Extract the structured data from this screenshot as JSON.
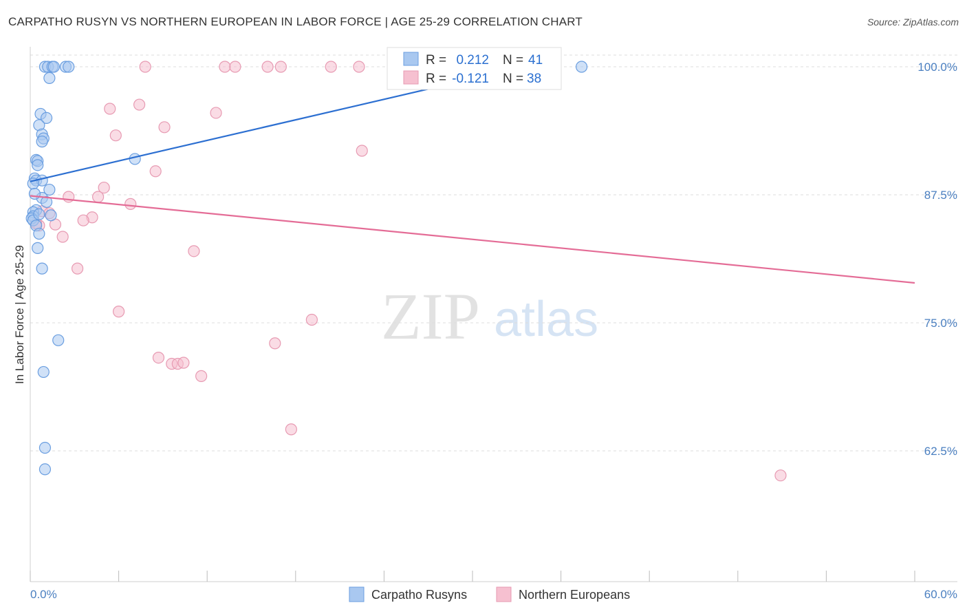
{
  "title": "CARPATHO RUSYN VS NORTHERN EUROPEAN IN LABOR FORCE | AGE 25-29 CORRELATION CHART",
  "source": "Source: ZipAtlas.com",
  "watermark": {
    "zip": "ZIP",
    "atlas": "atlas"
  },
  "colors": {
    "blue_fill": "#a9c8f0",
    "blue_stroke": "#6a9ee0",
    "blue_line": "#2c6fd1",
    "pink_fill": "#f6c0d0",
    "pink_stroke": "#e79ab2",
    "pink_line": "#e46c96",
    "grid": "#dddddd",
    "axis_text": "#4a7fc0"
  },
  "chart_data": {
    "type": "scatter",
    "title": "CARPATHO RUSYN VS NORTHERN EUROPEAN IN LABOR FORCE | AGE 25-29 CORRELATION CHART",
    "xlabel": "",
    "ylabel": "In Labor Force | Age 25-29",
    "xlim": [
      0,
      60
    ],
    "ylim": [
      51.5,
      100.5
    ],
    "x_tick_labels": [
      "0.0%",
      "60.0%"
    ],
    "y_ticks": [
      62.5,
      75.0,
      87.5,
      100.0
    ],
    "y_tick_labels": [
      "62.5%",
      "75.0%",
      "87.5%",
      "100.0%"
    ],
    "legend": [
      {
        "r_label": "R =",
        "r_value": "0.212",
        "n_label": "N =",
        "n_value": "41"
      },
      {
        "r_label": "R =",
        "r_value": "-0.121",
        "n_label": "N =",
        "n_value": "38"
      }
    ],
    "series": [
      {
        "name": "Carpatho Rusyns",
        "color": "blue",
        "trend": {
          "x": [
            0,
            33.5
          ],
          "y": [
            88.8,
            100.0
          ]
        },
        "points": [
          [
            1.0,
            100
          ],
          [
            1.2,
            100
          ],
          [
            1.5,
            100
          ],
          [
            1.6,
            100
          ],
          [
            2.4,
            100
          ],
          [
            2.6,
            100
          ],
          [
            37.4,
            100
          ],
          [
            1.3,
            98.9
          ],
          [
            0.7,
            95.4
          ],
          [
            1.1,
            95.0
          ],
          [
            0.6,
            94.3
          ],
          [
            0.8,
            93.4
          ],
          [
            0.9,
            93.0
          ],
          [
            0.8,
            92.7
          ],
          [
            7.1,
            91.0
          ],
          [
            0.4,
            90.9
          ],
          [
            0.5,
            90.8
          ],
          [
            0.5,
            90.4
          ],
          [
            0.3,
            89.1
          ],
          [
            0.4,
            88.9
          ],
          [
            0.8,
            88.9
          ],
          [
            0.2,
            88.6
          ],
          [
            1.3,
            88.0
          ],
          [
            0.8,
            87.2
          ],
          [
            0.4,
            86.0
          ],
          [
            0.2,
            85.8
          ],
          [
            0.2,
            85.4
          ],
          [
            1.4,
            85.5
          ],
          [
            0.1,
            85.2
          ],
          [
            0.2,
            85.0
          ],
          [
            0.4,
            84.5
          ],
          [
            0.6,
            83.7
          ],
          [
            0.5,
            82.3
          ],
          [
            0.8,
            80.3
          ],
          [
            1.9,
            73.3
          ],
          [
            0.9,
            70.2
          ],
          [
            1.0,
            62.8
          ],
          [
            1.0,
            60.7
          ],
          [
            0.3,
            87.6
          ],
          [
            1.1,
            86.8
          ],
          [
            0.6,
            85.6
          ]
        ]
      },
      {
        "name": "Northern Europeans",
        "color": "pink",
        "trend": {
          "x": [
            0,
            60
          ],
          "y": [
            87.4,
            78.9
          ]
        },
        "points": [
          [
            7.8,
            100
          ],
          [
            13.2,
            100
          ],
          [
            13.9,
            100
          ],
          [
            16.1,
            100
          ],
          [
            17.0,
            100
          ],
          [
            20.4,
            100
          ],
          [
            22.3,
            100
          ],
          [
            5.4,
            95.9
          ],
          [
            7.4,
            96.3
          ],
          [
            12.6,
            95.5
          ],
          [
            9.1,
            94.1
          ],
          [
            5.8,
            93.3
          ],
          [
            22.5,
            91.8
          ],
          [
            8.5,
            89.8
          ],
          [
            5.0,
            88.2
          ],
          [
            2.6,
            87.3
          ],
          [
            4.6,
            87.3
          ],
          [
            6.8,
            86.6
          ],
          [
            0.8,
            85.9
          ],
          [
            1.3,
            85.7
          ],
          [
            4.2,
            85.3
          ],
          [
            3.6,
            85.0
          ],
          [
            1.7,
            84.6
          ],
          [
            0.6,
            84.5
          ],
          [
            2.2,
            83.4
          ],
          [
            11.1,
            82.0
          ],
          [
            3.2,
            80.3
          ],
          [
            6.0,
            76.1
          ],
          [
            19.1,
            75.3
          ],
          [
            16.6,
            73.0
          ],
          [
            8.7,
            71.6
          ],
          [
            9.6,
            71.0
          ],
          [
            10.0,
            71.0
          ],
          [
            10.4,
            71.1
          ],
          [
            11.6,
            69.8
          ],
          [
            17.7,
            64.6
          ],
          [
            50.9,
            60.1
          ],
          [
            0.4,
            84.7
          ]
        ]
      }
    ]
  }
}
